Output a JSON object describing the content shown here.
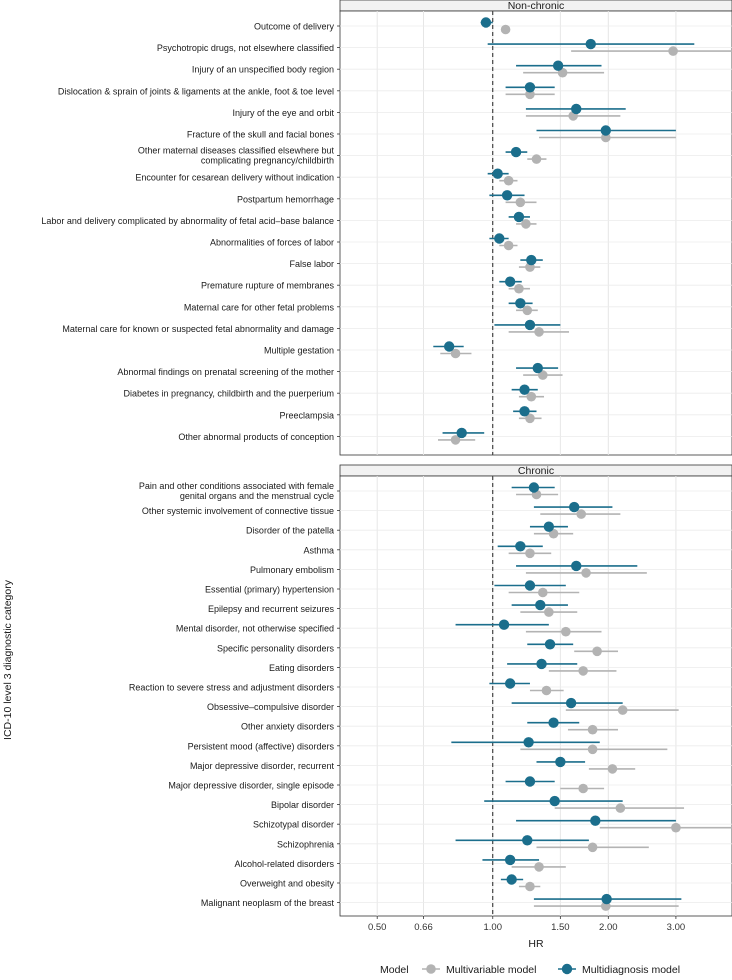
{
  "chart_data": {
    "type": "forest",
    "ylabel": "ICD-10 level 3 diagnostic category",
    "xlabel": "HR",
    "x_scale": "log",
    "xlim": [
      0.4,
      4.2
    ],
    "xticks": [
      0.5,
      0.66,
      1.0,
      1.5,
      2.0,
      3.0
    ],
    "xtick_labels": [
      "0.50",
      "0.66",
      "1.00",
      "1.50",
      "2.00",
      "3.00"
    ],
    "reference_line": 1.0,
    "legend": {
      "title": "Model",
      "position": "bottom",
      "entries": [
        {
          "name": "Multivariable model",
          "color": "#b3b3b3"
        },
        {
          "name": "Multidiagnosis model",
          "color": "#1b6e8c"
        }
      ]
    },
    "panels": [
      {
        "title": "Non-chronic",
        "rows": [
          {
            "label": [
              "Outcome of delivery"
            ],
            "multi": [
              0.96,
              0.93,
              1.0
            ],
            "mv": [
              1.08,
              1.08,
              1.08
            ]
          },
          {
            "label": [
              "Psychotropic drugs, not elsewhere classified"
            ],
            "multi": [
              1.8,
              0.97,
              3.35
            ],
            "mv": [
              2.95,
              1.6,
              4.2
            ]
          },
          {
            "label": [
              "Injury of an unspecified body region"
            ],
            "multi": [
              1.48,
              1.15,
              1.92
            ],
            "mv": [
              1.52,
              1.2,
              1.95
            ]
          },
          {
            "label": [
              "Dislocation & sprain of joints & ligaments at the ankle, foot & toe level"
            ],
            "multi": [
              1.25,
              1.08,
              1.45
            ],
            "mv": [
              1.25,
              1.08,
              1.45
            ]
          },
          {
            "label": [
              "Injury of the eye and orbit"
            ],
            "multi": [
              1.65,
              1.22,
              2.22
            ],
            "mv": [
              1.62,
              1.22,
              2.15
            ]
          },
          {
            "label": [
              "Fracture of the skull and facial bones"
            ],
            "multi": [
              1.97,
              1.3,
              3.0
            ],
            "mv": [
              1.97,
              1.32,
              3.0
            ]
          },
          {
            "label": [
              "Other maternal diseases classified elsewhere but",
              "complicating pregnancy/childbirth"
            ],
            "multi": [
              1.15,
              1.08,
              1.23
            ],
            "mv": [
              1.3,
              1.23,
              1.38
            ]
          },
          {
            "label": [
              "Encounter for cesarean delivery without indication"
            ],
            "multi": [
              1.03,
              0.97,
              1.1
            ],
            "mv": [
              1.1,
              1.04,
              1.16
            ]
          },
          {
            "label": [
              "Postpartum hemorrhage"
            ],
            "multi": [
              1.09,
              0.98,
              1.21
            ],
            "mv": [
              1.18,
              1.08,
              1.3
            ]
          },
          {
            "label": [
              "Labor and delivery complicated by abnormality of fetal acid–base balance"
            ],
            "multi": [
              1.17,
              1.1,
              1.25
            ],
            "mv": [
              1.22,
              1.15,
              1.3
            ]
          },
          {
            "label": [
              "Abnormalities of forces of labor"
            ],
            "multi": [
              1.04,
              0.98,
              1.1
            ],
            "mv": [
              1.1,
              1.04,
              1.16
            ]
          },
          {
            "label": [
              "False labor"
            ],
            "multi": [
              1.26,
              1.18,
              1.35
            ],
            "mv": [
              1.25,
              1.17,
              1.33
            ]
          },
          {
            "label": [
              "Premature rupture of membranes"
            ],
            "multi": [
              1.11,
              1.04,
              1.19
            ],
            "mv": [
              1.17,
              1.1,
              1.25
            ]
          },
          {
            "label": [
              "Maternal care for other fetal problems"
            ],
            "multi": [
              1.18,
              1.1,
              1.27
            ],
            "mv": [
              1.23,
              1.15,
              1.31
            ]
          },
          {
            "label": [
              "Maternal care for known or suspected fetal abnormality and damage"
            ],
            "multi": [
              1.25,
              1.01,
              1.5
            ],
            "mv": [
              1.32,
              1.1,
              1.58
            ]
          },
          {
            "label": [
              "Multiple gestation"
            ],
            "multi": [
              0.77,
              0.7,
              0.84
            ],
            "mv": [
              0.8,
              0.73,
              0.88
            ]
          },
          {
            "label": [
              "Abnormal findings on prenatal screening of the mother"
            ],
            "multi": [
              1.31,
              1.15,
              1.48
            ],
            "mv": [
              1.35,
              1.2,
              1.52
            ]
          },
          {
            "label": [
              "Diabetes in pregnancy, childbirth and the puerperium"
            ],
            "multi": [
              1.21,
              1.12,
              1.31
            ],
            "mv": [
              1.26,
              1.17,
              1.36
            ]
          },
          {
            "label": [
              "Preeclampsia"
            ],
            "multi": [
              1.21,
              1.13,
              1.3
            ],
            "mv": [
              1.25,
              1.17,
              1.34
            ]
          },
          {
            "label": [
              "Other abnormal products of conception"
            ],
            "multi": [
              0.83,
              0.74,
              0.95
            ],
            "mv": [
              0.8,
              0.72,
              0.9
            ]
          }
        ]
      },
      {
        "title": "Chronic",
        "rows": [
          {
            "label": [
              "Pain and other conditions associated with female",
              "genital organs and the menstrual cycle"
            ],
            "multi": [
              1.28,
              1.12,
              1.45
            ],
            "mv": [
              1.3,
              1.15,
              1.48
            ]
          },
          {
            "label": [
              "Other systemic involvement of connective tissue"
            ],
            "multi": [
              1.63,
              1.28,
              2.05
            ],
            "mv": [
              1.7,
              1.33,
              2.15
            ]
          },
          {
            "label": [
              "Disorder of the patella"
            ],
            "multi": [
              1.4,
              1.25,
              1.57
            ],
            "mv": [
              1.44,
              1.28,
              1.62
            ]
          },
          {
            "label": [
              "Asthma"
            ],
            "multi": [
              1.18,
              1.03,
              1.35
            ],
            "mv": [
              1.25,
              1.1,
              1.42
            ]
          },
          {
            "label": [
              "Pulmonary embolism"
            ],
            "multi": [
              1.65,
              1.15,
              2.38
            ],
            "mv": [
              1.75,
              1.22,
              2.52
            ]
          },
          {
            "label": [
              "Essential (primary) hypertension"
            ],
            "multi": [
              1.25,
              1.01,
              1.55
            ],
            "mv": [
              1.35,
              1.1,
              1.68
            ]
          },
          {
            "label": [
              "Epilepsy and recurrent seizures"
            ],
            "multi": [
              1.33,
              1.12,
              1.57
            ],
            "mv": [
              1.4,
              1.18,
              1.66
            ]
          },
          {
            "label": [
              "Mental disorder, not otherwise specified"
            ],
            "multi": [
              1.07,
              0.8,
              1.4
            ],
            "mv": [
              1.55,
              1.22,
              1.92
            ]
          },
          {
            "label": [
              "Specific personality disorders"
            ],
            "multi": [
              1.41,
              1.23,
              1.62
            ],
            "mv": [
              1.87,
              1.63,
              2.12
            ]
          },
          {
            "label": [
              "Eating disorders"
            ],
            "multi": [
              1.34,
              1.09,
              1.66
            ],
            "mv": [
              1.72,
              1.4,
              2.1
            ]
          },
          {
            "label": [
              "Reaction to severe stress and adjustment disorders"
            ],
            "multi": [
              1.11,
              0.98,
              1.25
            ],
            "mv": [
              1.38,
              1.25,
              1.53
            ]
          },
          {
            "label": [
              "Obsessive–compulsive disorder"
            ],
            "multi": [
              1.6,
              1.12,
              2.18
            ],
            "mv": [
              2.18,
              1.55,
              3.05
            ]
          },
          {
            "label": [
              "Other anxiety disorders"
            ],
            "multi": [
              1.44,
              1.23,
              1.68
            ],
            "mv": [
              1.82,
              1.57,
              2.12
            ]
          },
          {
            "label": [
              "Persistent mood (affective) disorders"
            ],
            "multi": [
              1.24,
              0.78,
              1.9
            ],
            "mv": [
              1.82,
              1.18,
              2.85
            ]
          },
          {
            "label": [
              "Major depressive disorder, recurrent"
            ],
            "multi": [
              1.5,
              1.3,
              1.74
            ],
            "mv": [
              2.05,
              1.78,
              2.35
            ]
          },
          {
            "label": [
              "Major depressive disorder, single episode"
            ],
            "multi": [
              1.25,
              1.08,
              1.45
            ],
            "mv": [
              1.72,
              1.5,
              1.95
            ]
          },
          {
            "label": [
              "Bipolar disorder"
            ],
            "multi": [
              1.45,
              0.95,
              2.18
            ],
            "mv": [
              2.15,
              1.45,
              3.15
            ]
          },
          {
            "label": [
              "Schizotypal disorder"
            ],
            "multi": [
              1.85,
              1.15,
              3.0
            ],
            "mv": [
              3.0,
              1.9,
              4.4
            ]
          },
          {
            "label": [
              "Schizophrenia"
            ],
            "multi": [
              1.23,
              0.8,
              1.78
            ],
            "mv": [
              1.82,
              1.3,
              2.55
            ]
          },
          {
            "label": [
              "Alcohol-related disorders"
            ],
            "multi": [
              1.11,
              0.94,
              1.32
            ],
            "mv": [
              1.32,
              1.12,
              1.55
            ]
          },
          {
            "label": [
              "Overweight and obesity"
            ],
            "multi": [
              1.12,
              1.05,
              1.2
            ],
            "mv": [
              1.25,
              1.17,
              1.33
            ]
          },
          {
            "label": [
              "Malignant neoplasm of the breast"
            ],
            "multi": [
              1.98,
              1.28,
              3.1
            ],
            "mv": [
              1.97,
              1.28,
              3.05
            ]
          }
        ]
      }
    ]
  }
}
